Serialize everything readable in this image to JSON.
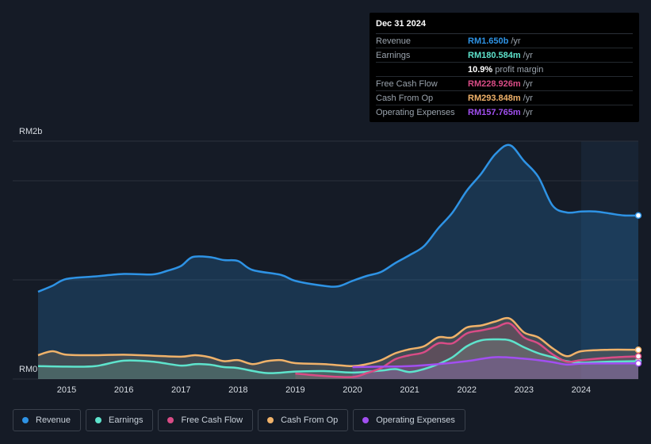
{
  "tooltip": {
    "date": "Dec 31 2024",
    "rows": [
      {
        "label": "Revenue",
        "value": "RM1.650b",
        "unit": "/yr",
        "color": "#2e93e5"
      },
      {
        "label": "Earnings",
        "value": "RM180.584m",
        "unit": "/yr",
        "color": "#5ee3cc"
      },
      {
        "label": "",
        "value": "10.9%",
        "unit": "profit margin",
        "color": "#ffffff"
      },
      {
        "label": "Free Cash Flow",
        "value": "RM228.926m",
        "unit": "/yr",
        "color": "#d94c86"
      },
      {
        "label": "Cash From Op",
        "value": "RM293.848m",
        "unit": "/yr",
        "color": "#f0b26a"
      },
      {
        "label": "Operating Expenses",
        "value": "RM157.765m",
        "unit": "/yr",
        "color": "#a14ff0"
      }
    ]
  },
  "legend": [
    {
      "label": "Revenue",
      "color": "#2e93e5"
    },
    {
      "label": "Earnings",
      "color": "#5ee3cc"
    },
    {
      "label": "Free Cash Flow",
      "color": "#d94c86"
    },
    {
      "label": "Cash From Op",
      "color": "#f0b26a"
    },
    {
      "label": "Operating Expenses",
      "color": "#a14ff0"
    }
  ],
  "chart_data": {
    "type": "area",
    "title": "",
    "y_top_label": "RM2b",
    "y_bottom_label": "RM0",
    "ylim": [
      0,
      2400
    ],
    "xlim": [
      2014.5,
      2025.0
    ],
    "x_ticks": [
      "2015",
      "2016",
      "2017",
      "2018",
      "2019",
      "2020",
      "2021",
      "2022",
      "2023",
      "2024"
    ],
    "x_tick_values": [
      2015,
      2016,
      2017,
      2018,
      2019,
      2020,
      2021,
      2022,
      2023,
      2024
    ],
    "forecast_start": 2024.0,
    "series": [
      {
        "name": "Revenue",
        "color": "#2e93e5",
        "points": [
          [
            2014.5,
            880
          ],
          [
            2014.75,
            940
          ],
          [
            2015.0,
            1010
          ],
          [
            2015.5,
            1035
          ],
          [
            2016.0,
            1060
          ],
          [
            2016.5,
            1055
          ],
          [
            2016.75,
            1090
          ],
          [
            2017.0,
            1140
          ],
          [
            2017.2,
            1230
          ],
          [
            2017.5,
            1230
          ],
          [
            2017.75,
            1200
          ],
          [
            2018.0,
            1190
          ],
          [
            2018.25,
            1100
          ],
          [
            2018.75,
            1050
          ],
          [
            2019.0,
            990
          ],
          [
            2019.5,
            940
          ],
          [
            2019.75,
            935
          ],
          [
            2020.0,
            990
          ],
          [
            2020.25,
            1040
          ],
          [
            2020.5,
            1080
          ],
          [
            2020.75,
            1170
          ],
          [
            2021.0,
            1250
          ],
          [
            2021.25,
            1340
          ],
          [
            2021.5,
            1520
          ],
          [
            2021.75,
            1680
          ],
          [
            2022.0,
            1900
          ],
          [
            2022.25,
            2070
          ],
          [
            2022.5,
            2270
          ],
          [
            2022.75,
            2360
          ],
          [
            2023.0,
            2200
          ],
          [
            2023.25,
            2040
          ],
          [
            2023.5,
            1750
          ],
          [
            2023.75,
            1680
          ],
          [
            2024.0,
            1690
          ],
          [
            2024.25,
            1690
          ],
          [
            2024.5,
            1670
          ],
          [
            2024.75,
            1650
          ],
          [
            2025.0,
            1650
          ]
        ]
      },
      {
        "name": "Earnings",
        "color": "#5ee3cc",
        "points": [
          [
            2014.5,
            130
          ],
          [
            2015.0,
            125
          ],
          [
            2015.5,
            130
          ],
          [
            2016.0,
            185
          ],
          [
            2016.5,
            175
          ],
          [
            2017.0,
            135
          ],
          [
            2017.25,
            150
          ],
          [
            2017.5,
            145
          ],
          [
            2017.75,
            120
          ],
          [
            2018.0,
            110
          ],
          [
            2018.5,
            60
          ],
          [
            2019.0,
            75
          ],
          [
            2019.5,
            80
          ],
          [
            2020.0,
            65
          ],
          [
            2020.5,
            85
          ],
          [
            2020.75,
            100
          ],
          [
            2021.0,
            70
          ],
          [
            2021.25,
            100
          ],
          [
            2021.5,
            150
          ],
          [
            2021.75,
            220
          ],
          [
            2022.0,
            330
          ],
          [
            2022.25,
            390
          ],
          [
            2022.5,
            400
          ],
          [
            2022.75,
            390
          ],
          [
            2023.0,
            320
          ],
          [
            2023.25,
            260
          ],
          [
            2023.5,
            220
          ],
          [
            2023.75,
            180
          ],
          [
            2024.0,
            165
          ],
          [
            2024.5,
            175
          ],
          [
            2025.0,
            180
          ]
        ]
      },
      {
        "name": "Free Cash Flow",
        "color": "#d94c86",
        "points": [
          [
            2019.0,
            55
          ],
          [
            2019.5,
            30
          ],
          [
            2020.0,
            20
          ],
          [
            2020.25,
            60
          ],
          [
            2020.5,
            110
          ],
          [
            2020.75,
            200
          ],
          [
            2021.0,
            240
          ],
          [
            2021.25,
            270
          ],
          [
            2021.5,
            360
          ],
          [
            2021.75,
            360
          ],
          [
            2022.0,
            460
          ],
          [
            2022.25,
            490
          ],
          [
            2022.5,
            520
          ],
          [
            2022.75,
            560
          ],
          [
            2023.0,
            420
          ],
          [
            2023.25,
            360
          ],
          [
            2023.5,
            250
          ],
          [
            2023.75,
            175
          ],
          [
            2024.0,
            190
          ],
          [
            2024.5,
            215
          ],
          [
            2025.0,
            229
          ]
        ]
      },
      {
        "name": "Cash From Op",
        "color": "#f0b26a",
        "points": [
          [
            2014.5,
            240
          ],
          [
            2014.75,
            280
          ],
          [
            2015.0,
            245
          ],
          [
            2015.5,
            240
          ],
          [
            2016.0,
            245
          ],
          [
            2016.5,
            235
          ],
          [
            2017.0,
            225
          ],
          [
            2017.25,
            240
          ],
          [
            2017.5,
            220
          ],
          [
            2017.75,
            180
          ],
          [
            2018.0,
            190
          ],
          [
            2018.25,
            150
          ],
          [
            2018.5,
            180
          ],
          [
            2018.75,
            190
          ],
          [
            2019.0,
            160
          ],
          [
            2019.5,
            150
          ],
          [
            2020.0,
            130
          ],
          [
            2020.25,
            150
          ],
          [
            2020.5,
            190
          ],
          [
            2020.75,
            260
          ],
          [
            2021.0,
            300
          ],
          [
            2021.25,
            330
          ],
          [
            2021.5,
            420
          ],
          [
            2021.75,
            420
          ],
          [
            2022.0,
            520
          ],
          [
            2022.25,
            540
          ],
          [
            2022.5,
            580
          ],
          [
            2022.75,
            610
          ],
          [
            2023.0,
            470
          ],
          [
            2023.25,
            420
          ],
          [
            2023.5,
            310
          ],
          [
            2023.75,
            230
          ],
          [
            2024.0,
            280
          ],
          [
            2024.5,
            295
          ],
          [
            2025.0,
            294
          ]
        ]
      },
      {
        "name": "Operating Expenses",
        "color": "#a14ff0",
        "points": [
          [
            2020.0,
            120
          ],
          [
            2020.5,
            125
          ],
          [
            2021.0,
            130
          ],
          [
            2021.5,
            150
          ],
          [
            2022.0,
            180
          ],
          [
            2022.5,
            220
          ],
          [
            2023.0,
            205
          ],
          [
            2023.25,
            190
          ],
          [
            2023.5,
            170
          ],
          [
            2023.75,
            145
          ],
          [
            2024.0,
            155
          ],
          [
            2024.5,
            157
          ],
          [
            2025.0,
            158
          ]
        ]
      }
    ]
  }
}
